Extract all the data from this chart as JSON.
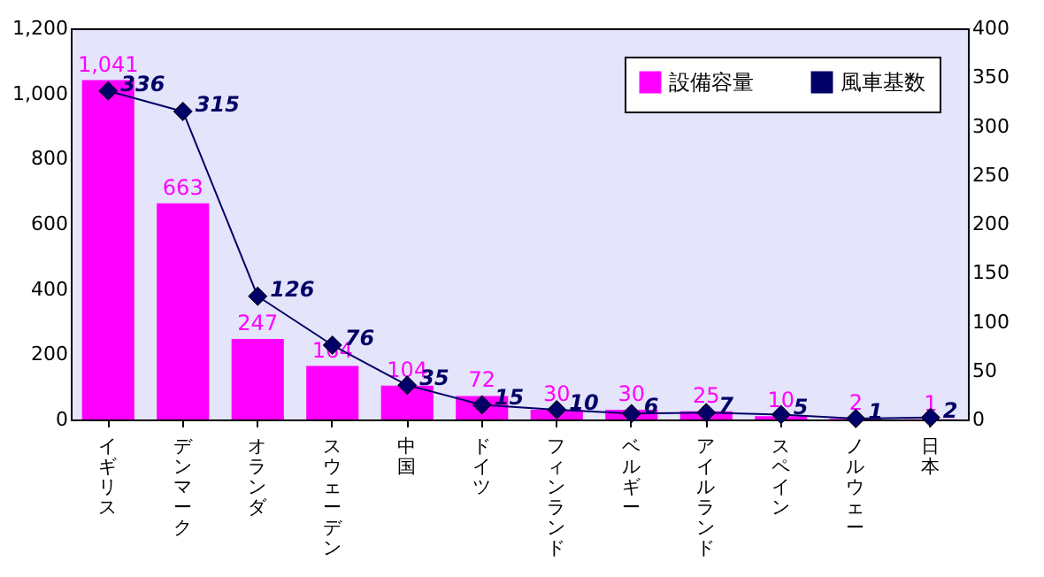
{
  "chart_data": {
    "type": "bar",
    "categories": [
      "イギリス",
      "デンマーク",
      "オランダ",
      "スウェーデン",
      "中国",
      "ドイツ",
      "フィンランド",
      "ベルギー",
      "アイルランド",
      "スペイン",
      "ノルウェー",
      "日本"
    ],
    "series": [
      {
        "name": "設備容量",
        "color": "#ff00ff",
        "values": [
          1041,
          663,
          247,
          164,
          104,
          72,
          30,
          30,
          25,
          10,
          2,
          1
        ],
        "value_labels": [
          "1,041",
          "663",
          "247",
          "164",
          "104",
          "72",
          "30",
          "30",
          "25",
          "10",
          "2",
          "1"
        ]
      },
      {
        "name": "風車基数",
        "type": "line",
        "axis": "y2",
        "color": "#000066",
        "marker": "diamond",
        "values": [
          336,
          315,
          126,
          76,
          35,
          15,
          10,
          6,
          7,
          5,
          1,
          2
        ],
        "value_labels": [
          "336",
          "315",
          "126",
          "76",
          "35",
          "15",
          "10",
          "6",
          "7",
          "5",
          "1",
          "2"
        ]
      }
    ],
    "ylim": [
      0,
      1200
    ],
    "yticks": [
      {
        "value": 0,
        "label": "0"
      },
      {
        "value": 200,
        "label": "200"
      },
      {
        "value": 400,
        "label": "400"
      },
      {
        "value": 600,
        "label": "600"
      },
      {
        "value": 800,
        "label": "800"
      },
      {
        "value": 1000,
        "label": "1,000"
      },
      {
        "value": 1200,
        "label": "1,200"
      }
    ],
    "y2lim": [
      0,
      400
    ],
    "y2ticks": [
      0,
      50,
      100,
      150,
      200,
      250,
      300,
      350,
      400
    ],
    "legend": "top right",
    "grid": false
  }
}
